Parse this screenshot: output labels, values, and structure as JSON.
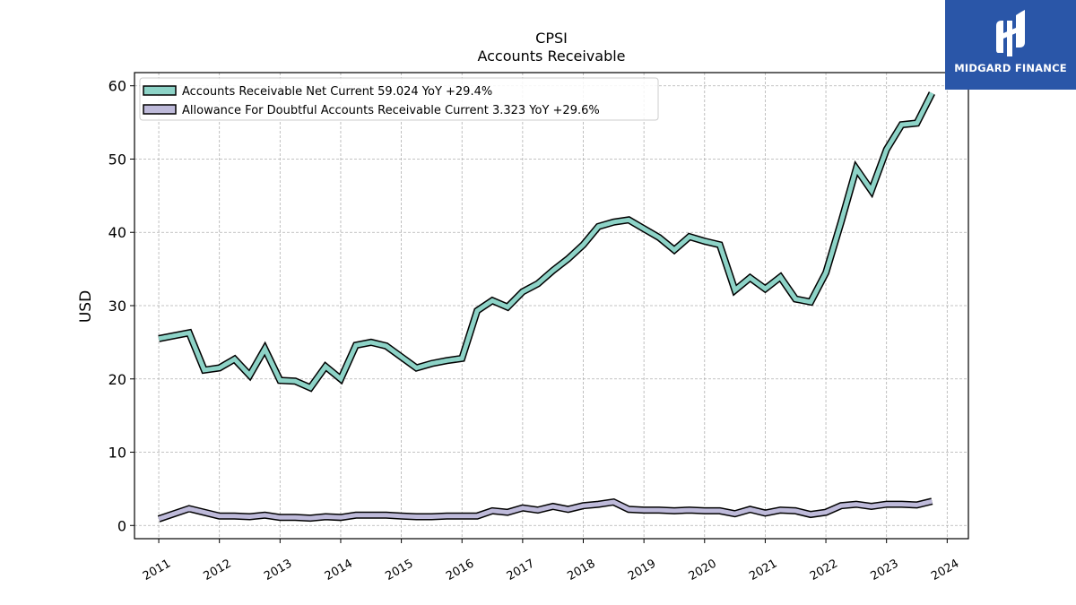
{
  "brand": {
    "name": "MIDGARD FINANCE",
    "bg_color": "#2a56a8"
  },
  "chart_data": {
    "type": "line",
    "title": "CPSI",
    "subtitle": "Accounts Receivable",
    "xlabel": "",
    "ylabel": "USD",
    "xlim": [
      2010.6,
      2024.35
    ],
    "ylim": [
      -1.8,
      61.8
    ],
    "x_ticks": [
      "2011",
      "2012",
      "2013",
      "2014",
      "2015",
      "2016",
      "2017",
      "2018",
      "2019",
      "2020",
      "2021",
      "2022",
      "2023",
      "2024"
    ],
    "y_ticks": [
      0,
      10,
      20,
      30,
      40,
      50,
      60
    ],
    "grid": true,
    "legend_position": "top-left",
    "series": [
      {
        "name": "Accounts Receivable Net Current",
        "legend_label": "Accounts Receivable Net Current  59.024 YoY +29.4%",
        "color": "#8dd3c7",
        "x": [
          2011.0,
          2011.5,
          2011.75,
          2012.0,
          2012.25,
          2012.5,
          2012.75,
          2013.0,
          2013.25,
          2013.5,
          2013.75,
          2014.0,
          2014.25,
          2014.5,
          2014.75,
          2015.0,
          2015.25,
          2015.5,
          2015.75,
          2016.0,
          2016.25,
          2016.5,
          2016.75,
          2017.0,
          2017.25,
          2017.5,
          2017.75,
          2018.0,
          2018.25,
          2018.5,
          2018.75,
          2019.0,
          2019.25,
          2019.5,
          2019.75,
          2020.0,
          2020.25,
          2020.5,
          2020.75,
          2021.0,
          2021.25,
          2021.5,
          2021.75,
          2022.0,
          2022.25,
          2022.5,
          2022.75,
          2023.0,
          2023.25,
          2023.5,
          2023.75
        ],
        "y": [
          25.5,
          26.3,
          21.2,
          21.5,
          22.7,
          20.5,
          24.1,
          19.8,
          19.7,
          18.8,
          21.7,
          20.0,
          24.6,
          25.0,
          24.5,
          23.0,
          21.5,
          22.1,
          22.5,
          22.8,
          29.3,
          30.7,
          29.8,
          31.9,
          33.0,
          34.8,
          36.4,
          38.3,
          40.8,
          41.4,
          41.7,
          40.5,
          39.3,
          37.6,
          39.4,
          38.8,
          38.3,
          32.1,
          33.8,
          32.3,
          33.9,
          30.9,
          30.5,
          34.5,
          41.4,
          48.7,
          45.7,
          51.3,
          54.7,
          54.9,
          59.0
        ]
      },
      {
        "name": "Allowance For Doubtful Accounts Receivable Current",
        "legend_label": "Allowance For Doubtful Accounts Receivable Current  3.323 YoY +29.6%",
        "color": "#bebada",
        "x": [
          2011.0,
          2011.5,
          2011.75,
          2012.0,
          2012.25,
          2012.5,
          2012.75,
          2013.0,
          2013.25,
          2013.5,
          2013.75,
          2014.0,
          2014.25,
          2014.5,
          2014.75,
          2015.0,
          2015.25,
          2015.5,
          2015.75,
          2016.0,
          2016.25,
          2016.5,
          2016.75,
          2017.0,
          2017.25,
          2017.5,
          2017.75,
          2018.0,
          2018.25,
          2018.5,
          2018.75,
          2019.0,
          2019.25,
          2019.5,
          2019.75,
          2020.0,
          2020.25,
          2020.5,
          2020.75,
          2021.0,
          2021.25,
          2021.5,
          2021.75,
          2022.0,
          2022.25,
          2022.5,
          2022.75,
          2023.0,
          2023.25,
          2023.5,
          2023.75
        ],
        "y": [
          0.9,
          2.3,
          1.8,
          1.3,
          1.3,
          1.2,
          1.4,
          1.1,
          1.1,
          1.0,
          1.2,
          1.1,
          1.4,
          1.4,
          1.4,
          1.3,
          1.2,
          1.2,
          1.3,
          1.3,
          1.3,
          2.0,
          1.8,
          2.4,
          2.1,
          2.6,
          2.2,
          2.7,
          2.9,
          3.2,
          2.2,
          2.1,
          2.1,
          2.0,
          2.1,
          2.0,
          2.0,
          1.6,
          2.2,
          1.7,
          2.1,
          2.0,
          1.5,
          1.8,
          2.7,
          2.9,
          2.6,
          2.9,
          2.9,
          2.8,
          3.3
        ]
      }
    ]
  }
}
